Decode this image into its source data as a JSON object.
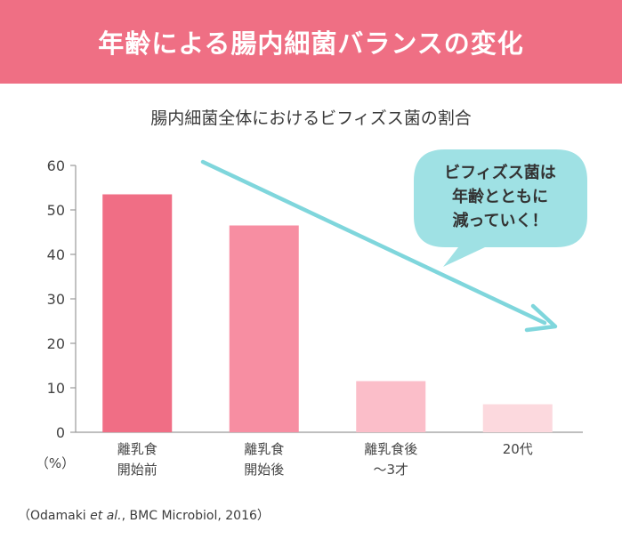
{
  "header": {
    "title": "年齢による腸内細菌バランスの変化"
  },
  "chart_data": {
    "type": "bar",
    "title": "腸内細菌全体におけるビフィズス菌の割合",
    "ylabel": "（%）",
    "ylim": [
      0,
      60
    ],
    "yticks": [
      0,
      10,
      20,
      30,
      40,
      50,
      60
    ],
    "categories": [
      [
        "離乳食",
        "開始前"
      ],
      [
        "離乳食",
        "開始後"
      ],
      [
        "離乳食後",
        "～3才"
      ],
      [
        "20代"
      ]
    ],
    "values": [
      53.5,
      46.5,
      11.5,
      6.3
    ],
    "bar_colors": [
      "#f06e85",
      "#f78ea2",
      "#fbbec9",
      "#fcd9de"
    ],
    "annotation": {
      "lines": [
        "ビフィズス菌は",
        "年齢とともに",
        "減っていく！"
      ],
      "bubble_color": "#9fe1e4",
      "arrow_color": "#7fd6dc"
    },
    "grid": false
  },
  "source": {
    "prefix": "（Odamaki ",
    "italic": "et al.",
    "suffix": ", BMC Microbiol, 2016）"
  }
}
